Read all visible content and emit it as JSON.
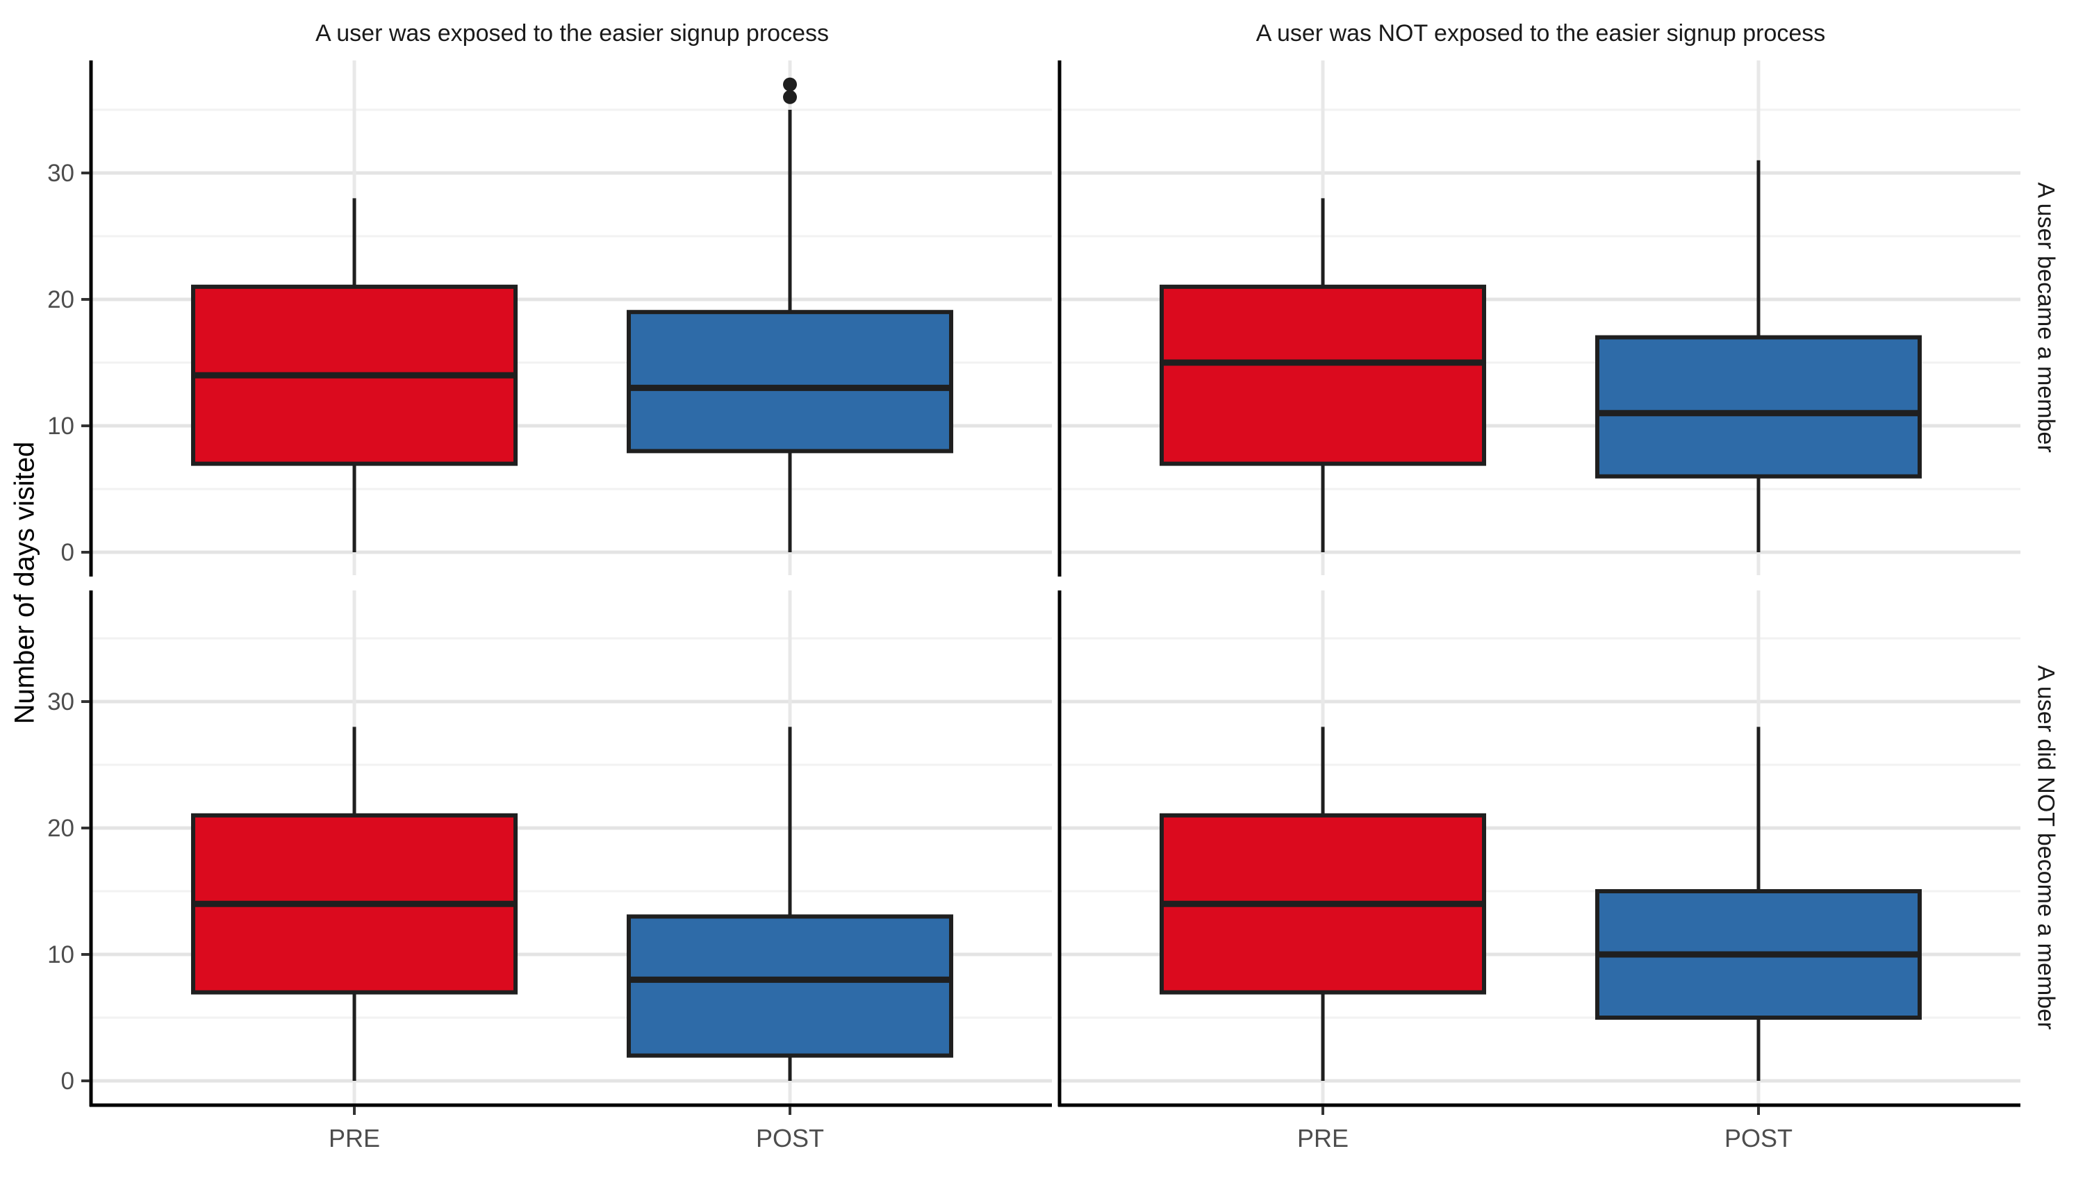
{
  "figure": {
    "col_titles": [
      "A user was exposed to the easier signup process",
      "A user was NOT exposed to the easier signup process"
    ],
    "row_strips": [
      "A user became a member",
      "A user did NOT become a member"
    ],
    "y_axis_title": "Number of days visited"
  },
  "colors": {
    "pre_fill": "#DB0A1E",
    "post_fill": "#2E6BA8",
    "box_stroke": "#1F1F1F",
    "median_stroke": "#1F1F1F",
    "outlier": "#1F1F1F",
    "grid_major": "#E4E4E4",
    "grid_minor": "#F2F2F2",
    "grid_vertical": "#E8E8E8",
    "axis_line": "#000000",
    "tick_mark": "#333333",
    "tick_text": "#4D4D4D",
    "title_text": "#1A1A1A",
    "background": "#FFFFFF"
  },
  "chart_data": {
    "type": "boxplot",
    "orientation": "vertical",
    "title": "",
    "xlabel": "",
    "ylabel": "Number of days visited",
    "x_categories": [
      "PRE",
      "POST"
    ],
    "y_ticks": [
      0,
      10,
      20,
      30
    ],
    "y_minor_ticks": [
      5,
      15,
      25,
      35
    ],
    "y_range_displayed": [
      -1.9,
      38.9
    ],
    "grid": "horizontal major+minor, vertical major at categories",
    "legend_position": "none",
    "facet_columns": [
      "A user was exposed to the easier signup process",
      "A user was NOT exposed to the easier signup process"
    ],
    "facet_rows": [
      "A user became a member",
      "A user did NOT become a member"
    ],
    "facets": [
      {
        "row": "A user became a member",
        "col": "A user was exposed to the easier signup process",
        "row_index": 0,
        "col_index": 0,
        "boxes": [
          {
            "category": "PRE",
            "color_key": "pre",
            "whisker_low": 0,
            "q1": 7,
            "median": 14,
            "q3": 21,
            "whisker_high": 28,
            "outliers": []
          },
          {
            "category": "POST",
            "color_key": "post",
            "whisker_low": 0,
            "q1": 8,
            "median": 13,
            "q3": 19,
            "whisker_high": 35,
            "outliers": [
              36,
              37
            ]
          }
        ]
      },
      {
        "row": "A user became a member",
        "col": "A user was NOT exposed to the easier signup process",
        "row_index": 0,
        "col_index": 1,
        "boxes": [
          {
            "category": "PRE",
            "color_key": "pre",
            "whisker_low": 0,
            "q1": 7,
            "median": 15,
            "q3": 21,
            "whisker_high": 28,
            "outliers": []
          },
          {
            "category": "POST",
            "color_key": "post",
            "whisker_low": 0,
            "q1": 6,
            "median": 11,
            "q3": 17,
            "whisker_high": 31,
            "outliers": []
          }
        ]
      },
      {
        "row": "A user did NOT become a member",
        "col": "A user was exposed to the easier signup process",
        "row_index": 1,
        "col_index": 0,
        "boxes": [
          {
            "category": "PRE",
            "color_key": "pre",
            "whisker_low": 0,
            "q1": 7,
            "median": 14,
            "q3": 21,
            "whisker_high": 28,
            "outliers": []
          },
          {
            "category": "POST",
            "color_key": "post",
            "whisker_low": 0,
            "q1": 2,
            "median": 8,
            "q3": 13,
            "whisker_high": 28,
            "outliers": []
          }
        ]
      },
      {
        "row": "A user did NOT become a member",
        "col": "A user was NOT exposed to the easier signup process",
        "row_index": 1,
        "col_index": 1,
        "boxes": [
          {
            "category": "PRE",
            "color_key": "pre",
            "whisker_low": 0,
            "q1": 7,
            "median": 14,
            "q3": 21,
            "whisker_high": 28,
            "outliers": []
          },
          {
            "category": "POST",
            "color_key": "post",
            "whisker_low": 0,
            "q1": 5,
            "median": 10,
            "q3": 15,
            "whisker_high": 28,
            "outliers": []
          }
        ]
      }
    ]
  }
}
